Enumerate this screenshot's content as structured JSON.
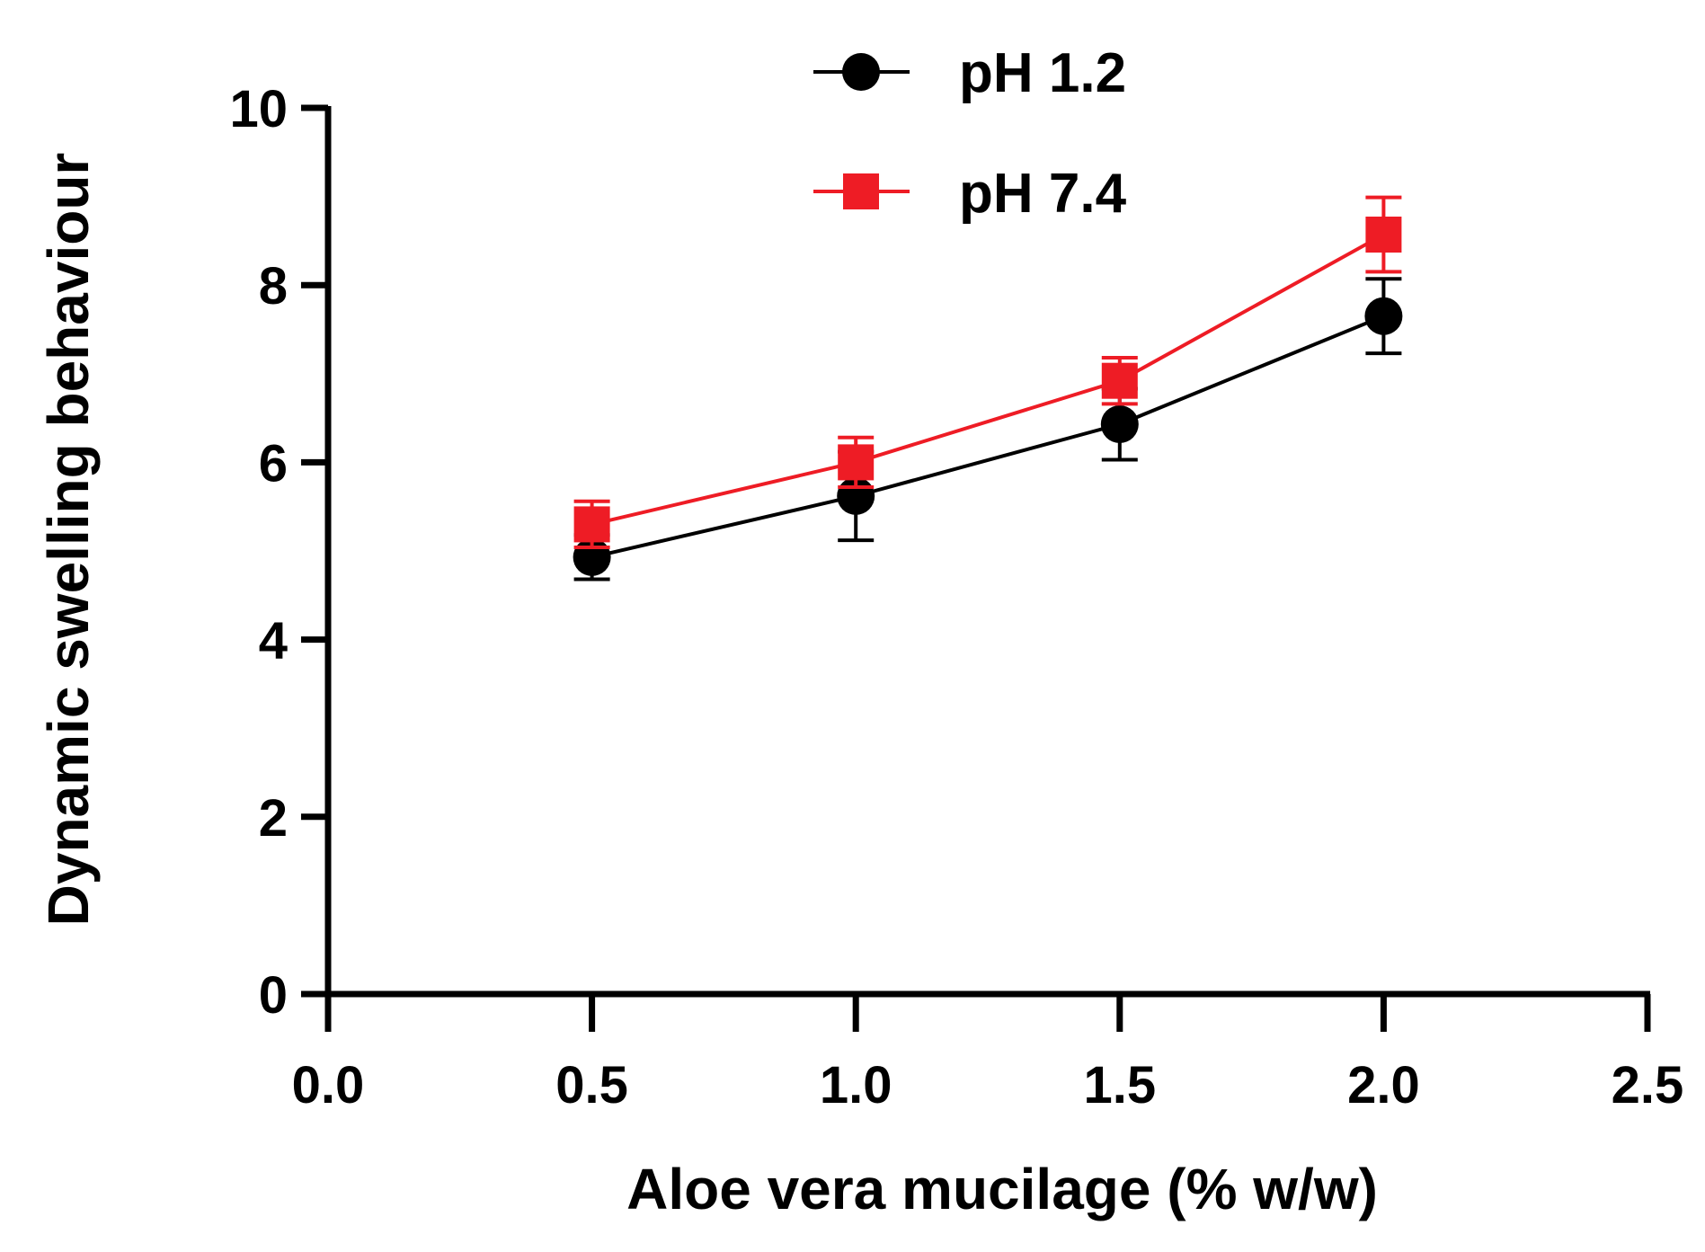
{
  "chart_data": {
    "type": "line",
    "title": "",
    "xlabel": "Aloe vera mucilage (% w/w)",
    "ylabel": "Dynamic swelling behaviour",
    "xlim": [
      0.0,
      2.5
    ],
    "ylim": [
      0,
      10
    ],
    "x_ticks": [
      0.0,
      0.5,
      1.0,
      1.5,
      2.0,
      2.5
    ],
    "x_tick_labels": [
      "0.0",
      "0.5",
      "1.0",
      "1.5",
      "2.0",
      "2.5"
    ],
    "y_ticks": [
      0,
      2,
      4,
      6,
      8,
      10
    ],
    "y_tick_labels": [
      "0",
      "2",
      "4",
      "6",
      "8",
      "10"
    ],
    "grid": false,
    "legend_position": "top-center",
    "series": [
      {
        "name": "pH 1.2",
        "color": "#000000",
        "marker": "circle",
        "x": [
          0.5,
          1.0,
          1.5,
          2.0
        ],
        "y": [
          4.93,
          5.62,
          6.43,
          7.65
        ],
        "error": [
          0.25,
          0.5,
          0.4,
          0.42
        ]
      },
      {
        "name": "pH 7.4",
        "color": "#ee1c25",
        "marker": "square",
        "x": [
          0.5,
          1.0,
          1.5,
          2.0
        ],
        "y": [
          5.3,
          6.0,
          6.92,
          8.57
        ],
        "error": [
          0.26,
          0.28,
          0.26,
          0.42
        ]
      }
    ]
  }
}
